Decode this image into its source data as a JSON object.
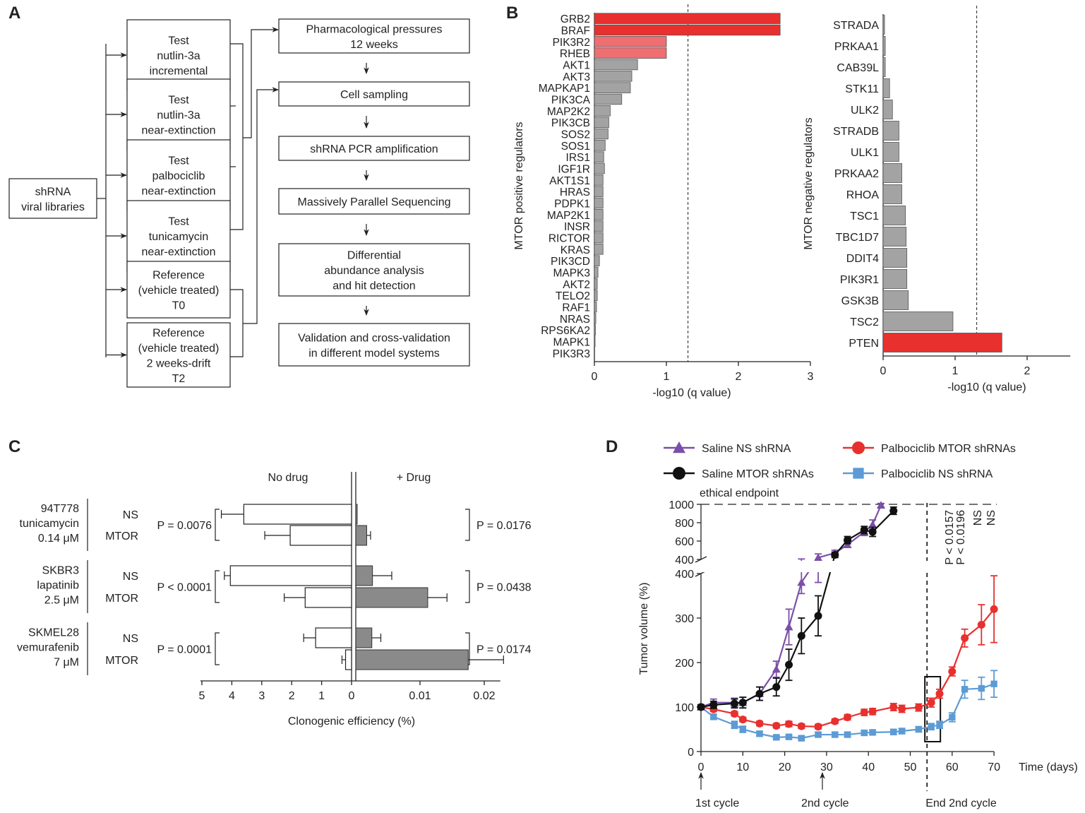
{
  "panels": {
    "A": {
      "label": "A",
      "source_box": [
        "shRNA",
        "viral libraries"
      ],
      "condition_boxes": [
        [
          "Test",
          "nutlin-3a",
          "incremental"
        ],
        [
          "Test",
          "nutlin-3a",
          "near-extinction"
        ],
        [
          "Test",
          "palbociclib",
          "near-extinction"
        ],
        [
          "Test",
          "tunicamycin",
          "near-extinction"
        ],
        [
          "Reference",
          "(vehicle treated)",
          "T0"
        ],
        [
          "Reference",
          "(vehicle treated)",
          "2 weeks-drift",
          "T2"
        ]
      ],
      "pipeline_boxes": [
        [
          "Pharmacological pressures",
          "12 weeks"
        ],
        [
          "Cell sampling"
        ],
        [
          "shRNA PCR amplification"
        ],
        [
          "Massively Parallel Sequencing"
        ],
        [
          "Differential",
          "abundance analysis",
          "and hit detection"
        ],
        [
          "Validation and cross-validation",
          "in different model systems"
        ]
      ]
    },
    "B": {
      "label": "B"
    },
    "C": {
      "label": "C"
    },
    "D": {
      "label": "D"
    }
  },
  "colors": {
    "red": "#e8302e",
    "light_red": "#ee6e72",
    "gray": "#a3a3a3",
    "purple": "#7b4fa8",
    "black": "#111111",
    "blue": "#5c9bd5"
  },
  "chart_data": [
    {
      "id": "B-positive",
      "type": "bar",
      "orientation": "horizontal",
      "ylabel": "MTOR positive regulators",
      "xlabel": "-log10 (q value)",
      "xlim": [
        0,
        3
      ],
      "xticks": [
        0,
        1,
        2,
        3
      ],
      "threshold": 1.3,
      "categories": [
        "GRB2",
        "BRAF",
        "PIK3R2",
        "RHEB",
        "AKT1",
        "AKT3",
        "MAPKAP1",
        "PIK3CA",
        "MAP2K2",
        "PIK3CB",
        "SOS2",
        "SOS1",
        "IRS1",
        "IGF1R",
        "AKT1S1",
        "HRAS",
        "PDPK1",
        "MAP2K1",
        "INSR",
        "RICTOR",
        "KRAS",
        "PIK3CD",
        "MAPK3",
        "AKT2",
        "TELO2",
        "RAF1",
        "NRAS",
        "RPS6KA2",
        "MAPK1",
        "PIK3R3"
      ],
      "values": [
        2.58,
        2.58,
        1.0,
        1.0,
        0.6,
        0.52,
        0.5,
        0.38,
        0.22,
        0.2,
        0.19,
        0.15,
        0.13,
        0.14,
        0.12,
        0.12,
        0.12,
        0.12,
        0.12,
        0.12,
        0.12,
        0.07,
        0.05,
        0.04,
        0.04,
        0.03,
        0.02,
        0.015,
        0.01,
        0.0
      ],
      "highlight": [
        "red",
        "red",
        "light_red",
        "light_red"
      ]
    },
    {
      "id": "B-negative",
      "type": "bar",
      "orientation": "horizontal",
      "ylabel": "MTOR negative regulators",
      "xlabel": "-log10 (q value)",
      "xlim": [
        0,
        3
      ],
      "xticks": [
        0,
        1,
        2
      ],
      "threshold": 1.3,
      "categories": [
        "STRADA",
        "PRKAA1",
        "CAB39L",
        "STK11",
        "ULK2",
        "STRADB",
        "ULK1",
        "PRKAA2",
        "RHOA",
        "TSC1",
        "TBC1D7",
        "DDIT4",
        "PIK3R1",
        "GSK3B",
        "TSC2",
        "PTEN"
      ],
      "values": [
        0.02,
        0.03,
        0.03,
        0.09,
        0.13,
        0.22,
        0.22,
        0.26,
        0.26,
        0.31,
        0.32,
        0.33,
        0.33,
        0.35,
        0.97,
        1.65
      ],
      "highlight_last": "red"
    },
    {
      "id": "C",
      "type": "bar",
      "orientation": "horizontal",
      "xlabel": "Clonogenic efficiency (%)",
      "left_header": "No drug",
      "right_header": "+ Drug",
      "left_ticks": [
        5,
        4,
        3,
        2,
        1,
        0
      ],
      "right_ticks": [
        0.01,
        0.02
      ],
      "left_xlim": [
        0,
        5
      ],
      "right_xlim": [
        0,
        0.02
      ],
      "groups": [
        {
          "lines": [
            "94T778",
            "tunicamycin",
            "0.14 μM"
          ],
          "left_p": "P = 0.0076",
          "right_p": "P = 0.0176",
          "rows": [
            {
              "label": "NS",
              "nodrug": 3.6,
              "nodrug_err": 0.75,
              "drug": 0.0002,
              "drug_err": 0
            },
            {
              "label": "MTOR",
              "nodrug": 2.05,
              "nodrug_err": 0.85,
              "drug": 0.0017,
              "drug_err": 0.0006
            }
          ]
        },
        {
          "lines": [
            "SKBR3",
            "lapatinib",
            "2.5 μM"
          ],
          "left_p": "P < 0.0001",
          "right_p": "P = 0.0438",
          "rows": [
            {
              "label": "NS",
              "nodrug": 4.05,
              "nodrug_err": 0.2,
              "drug": 0.0026,
              "drug_err": 0.003
            },
            {
              "label": "MTOR",
              "nodrug": 1.55,
              "nodrug_err": 0.7,
              "drug": 0.0112,
              "drug_err": 0.003
            }
          ]
        },
        {
          "lines": [
            "SKMEL28",
            "vemurafenib",
            "7 μM"
          ],
          "left_p": "P = 0.0001",
          "right_p": "P = 0.0174",
          "rows": [
            {
              "label": "NS",
              "nodrug": 1.2,
              "nodrug_err": 0.4,
              "drug": 0.0025,
              "drug_err": 0.0014
            },
            {
              "label": "MTOR",
              "nodrug": 0.2,
              "nodrug_err": 0.12,
              "drug": 0.0175,
              "drug_err": 0.0055
            }
          ]
        }
      ]
    },
    {
      "id": "D",
      "type": "line",
      "ylabel": "Tumor volume (%)",
      "xlabel": "Time (days)",
      "xlim": [
        0,
        70
      ],
      "xticks": [
        0,
        10,
        20,
        30,
        40,
        50,
        60,
        70
      ],
      "ylim_lower": [
        0,
        400
      ],
      "ylim_upper": [
        400,
        1000
      ],
      "yticks_lower": [
        0,
        100,
        200,
        300,
        400
      ],
      "yticks_upper": [
        400,
        600,
        800,
        1000
      ],
      "endpoint_label": "ethical endpoint",
      "end_cycle_day": 54,
      "annotations": {
        "cycle1": "1st cycle",
        "cycle2": "2nd cycle",
        "end_cycle": "End 2nd cycle",
        "stats": [
          "P < 0.0157",
          "P < 0.0196",
          "NS",
          "NS"
        ]
      },
      "series": [
        {
          "name": "Saline NS shRNA",
          "color": "purple",
          "marker": "triangle",
          "x": [
            0,
            3,
            8,
            10,
            14,
            18,
            21,
            24,
            28,
            32,
            35,
            39,
            41,
            43
          ],
          "y": [
            100,
            110,
            110,
            110,
            130,
            185,
            280,
            380,
            420,
            470,
            560,
            700,
            780,
            990
          ],
          "err": [
            5,
            8,
            10,
            12,
            15,
            18,
            40,
            25,
            40,
            30,
            30,
            40,
            50,
            20
          ]
        },
        {
          "name": "Saline MTOR shRNAs",
          "color": "black",
          "marker": "circle",
          "x": [
            0,
            3,
            8,
            10,
            14,
            18,
            21,
            24,
            28,
            32,
            35,
            39,
            41,
            46
          ],
          "y": [
            100,
            105,
            108,
            110,
            130,
            145,
            195,
            260,
            305,
            450,
            610,
            720,
            700,
            930
          ],
          "err": [
            5,
            8,
            10,
            12,
            15,
            20,
            35,
            40,
            45,
            30,
            40,
            40,
            50,
            40
          ]
        },
        {
          "name": "Palbociclib MTOR shRNAs",
          "color": "red",
          "marker": "circle",
          "x": [
            0,
            3,
            8,
            10,
            14,
            18,
            21,
            24,
            28,
            32,
            35,
            39,
            41,
            46,
            48,
            52,
            55,
            57,
            60,
            63,
            67,
            70
          ],
          "y": [
            100,
            95,
            85,
            72,
            63,
            58,
            62,
            57,
            56,
            68,
            77,
            88,
            90,
            100,
            96,
            99,
            110,
            130,
            180,
            255,
            285,
            320
          ],
          "err": [
            3,
            5,
            5,
            5,
            5,
            5,
            6,
            5,
            5,
            5,
            6,
            7,
            7,
            8,
            8,
            8,
            10,
            10,
            10,
            20,
            45,
            75
          ]
        },
        {
          "name": "Palbociclib NS shRNA",
          "color": "blue",
          "marker": "square",
          "x": [
            0,
            3,
            8,
            10,
            14,
            18,
            21,
            24,
            28,
            32,
            35,
            39,
            41,
            46,
            48,
            52,
            55,
            57,
            60,
            63,
            67,
            70
          ],
          "y": [
            100,
            78,
            60,
            50,
            40,
            32,
            33,
            30,
            38,
            38,
            38,
            42,
            43,
            44,
            46,
            50,
            56,
            60,
            77,
            140,
            142,
            152
          ],
          "err": [
            3,
            6,
            8,
            7,
            5,
            4,
            4,
            4,
            5,
            5,
            5,
            5,
            5,
            6,
            6,
            6,
            7,
            8,
            10,
            20,
            25,
            30
          ]
        }
      ]
    }
  ]
}
